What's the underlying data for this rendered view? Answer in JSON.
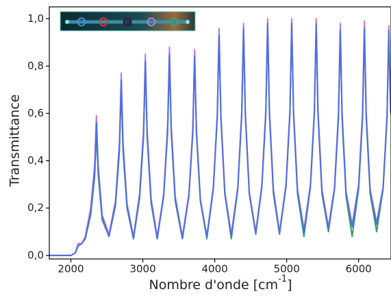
{
  "chart_data": {
    "type": "line",
    "ylabel": "Transmittance",
    "xlabel": [
      "Nombre d'onde [cm",
      "-1",
      "]"
    ],
    "xlim": [
      1700,
      6450
    ],
    "ylim": [
      -0.015,
      1.05
    ],
    "xticks": [
      2000,
      3000,
      4000,
      5000,
      6000
    ],
    "yticks": [
      {
        "value": 0,
        "label": "0,0"
      },
      {
        "value": 0.2,
        "label": "0,2"
      },
      {
        "value": 0.4,
        "label": "0,4"
      },
      {
        "value": 0.6,
        "label": "0,6"
      },
      {
        "value": 0.8,
        "label": "0,8"
      },
      {
        "value": 1.0,
        "label": "1,0"
      }
    ],
    "x": [
      1700,
      2000,
      2060,
      2100,
      2150,
      2200,
      2275,
      2330,
      2355,
      2380,
      2435,
      2530,
      2620,
      2675,
      2700,
      2725,
      2780,
      2870,
      2955,
      3010,
      3035,
      3060,
      3115,
      3200,
      3290,
      3345,
      3370,
      3395,
      3450,
      3550,
      3640,
      3695,
      3720,
      3745,
      3800,
      3890,
      3980,
      4035,
      4060,
      4085,
      4140,
      4230,
      4320,
      4375,
      4400,
      4425,
      4480,
      4570,
      4655,
      4710,
      4735,
      4760,
      4815,
      4900,
      4990,
      5045,
      5070,
      5095,
      5150,
      5240,
      5330,
      5385,
      5410,
      5435,
      5490,
      5580,
      5665,
      5720,
      5745,
      5770,
      5825,
      5910,
      6000,
      6055,
      6080,
      6105,
      6160,
      6250,
      6340,
      6395,
      6420,
      6445
    ],
    "series": [
      {
        "color": "#2e9e6a",
        "values": [
          0,
          0,
          0.01,
          0.04,
          0.05,
          0.07,
          0.17,
          0.33,
          0.52,
          0.34,
          0.15,
          0.08,
          0.21,
          0.44,
          0.71,
          0.44,
          0.2,
          0.07,
          0.24,
          0.5,
          0.81,
          0.5,
          0.22,
          0.07,
          0.25,
          0.52,
          0.84,
          0.52,
          0.23,
          0.07,
          0.25,
          0.52,
          0.85,
          0.52,
          0.23,
          0.07,
          0.28,
          0.59,
          0.95,
          0.59,
          0.26,
          0.07,
          0.28,
          0.6,
          0.96,
          0.6,
          0.26,
          0.09,
          0.29,
          0.6,
          0.98,
          0.6,
          0.26,
          0.09,
          0.29,
          0.6,
          0.98,
          0.6,
          0.26,
          0.08,
          0.29,
          0.6,
          0.98,
          0.6,
          0.26,
          0.1,
          0.28,
          0.58,
          0.95,
          0.58,
          0.25,
          0.08,
          0.28,
          0.58,
          0.96,
          0.58,
          0.26,
          0.1,
          0.28,
          0.58,
          0.95,
          0.6
        ]
      },
      {
        "color": "#c174e6",
        "values": [
          0,
          0,
          0.01,
          0.05,
          0.05,
          0.08,
          0.2,
          0.38,
          0.59,
          0.38,
          0.17,
          0.09,
          0.23,
          0.48,
          0.77,
          0.48,
          0.22,
          0.08,
          0.26,
          0.53,
          0.85,
          0.53,
          0.24,
          0.08,
          0.26,
          0.55,
          0.88,
          0.55,
          0.25,
          0.08,
          0.26,
          0.54,
          0.87,
          0.54,
          0.24,
          0.08,
          0.29,
          0.6,
          0.96,
          0.6,
          0.27,
          0.09,
          0.29,
          0.61,
          0.98,
          0.61,
          0.27,
          0.1,
          0.3,
          0.62,
          1.0,
          0.62,
          0.28,
          0.1,
          0.3,
          0.62,
          1.0,
          0.62,
          0.28,
          0.11,
          0.3,
          0.62,
          1.0,
          0.62,
          0.28,
          0.12,
          0.29,
          0.61,
          0.98,
          0.61,
          0.27,
          0.13,
          0.3,
          0.61,
          0.99,
          0.61,
          0.28,
          0.14,
          0.29,
          0.6,
          0.97,
          0.62
        ]
      },
      {
        "color": "#4f6fe0",
        "values": [
          0,
          0,
          0.01,
          0.04,
          0.05,
          0.07,
          0.18,
          0.35,
          0.56,
          0.36,
          0.16,
          0.08,
          0.22,
          0.46,
          0.74,
          0.46,
          0.21,
          0.07,
          0.25,
          0.51,
          0.82,
          0.51,
          0.23,
          0.07,
          0.25,
          0.53,
          0.85,
          0.53,
          0.24,
          0.07,
          0.25,
          0.52,
          0.84,
          0.52,
          0.23,
          0.08,
          0.28,
          0.58,
          0.93,
          0.58,
          0.26,
          0.08,
          0.28,
          0.59,
          0.96,
          0.59,
          0.26,
          0.09,
          0.29,
          0.6,
          0.98,
          0.6,
          0.27,
          0.09,
          0.29,
          0.6,
          0.98,
          0.6,
          0.27,
          0.1,
          0.29,
          0.6,
          0.98,
          0.6,
          0.27,
          0.11,
          0.28,
          0.59,
          0.95,
          0.59,
          0.26,
          0.12,
          0.29,
          0.59,
          0.96,
          0.59,
          0.27,
          0.13,
          0.28,
          0.58,
          0.95,
          0.6
        ]
      }
    ]
  }
}
